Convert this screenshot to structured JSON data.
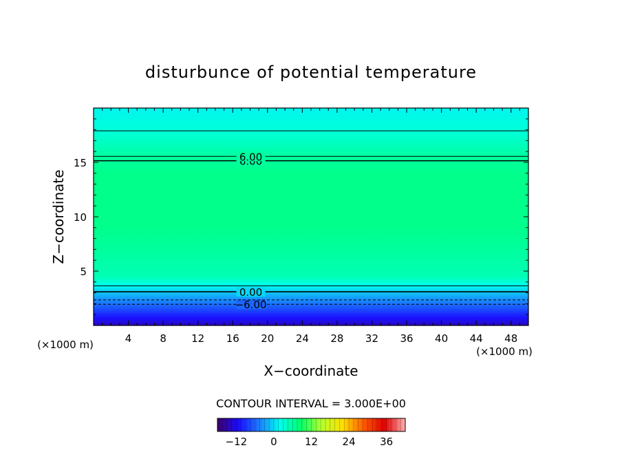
{
  "chart_data": {
    "type": "heatmap",
    "title": "disturbunce of potential temperature",
    "xlabel": "X−coordinate",
    "ylabel": "Z−coordinate",
    "x_unit": "(×1000 m)",
    "y_unit": "(×1000 m)",
    "xlim": [
      0,
      50
    ],
    "ylim": [
      0,
      20
    ],
    "x_ticks": [
      4,
      8,
      12,
      16,
      20,
      24,
      28,
      32,
      36,
      40,
      44,
      48
    ],
    "y_ticks": [
      5,
      10,
      15
    ],
    "grid": false,
    "z_profile": [
      {
        "z": 0.0,
        "value": -14
      },
      {
        "z": 0.7,
        "value": -11
      },
      {
        "z": 1.6,
        "value": -7
      },
      {
        "z": 2.3,
        "value": -4
      },
      {
        "z": 3.0,
        "value": -1
      },
      {
        "z": 3.7,
        "value": 2
      },
      {
        "z": 4.5,
        "value": 5
      },
      {
        "z": 9.0,
        "value": 7
      },
      {
        "z": 14.0,
        "value": 7
      },
      {
        "z": 15.5,
        "value": 6
      },
      {
        "z": 17.0,
        "value": 4
      },
      {
        "z": 18.0,
        "value": 3
      },
      {
        "z": 20.0,
        "value": 1.5
      }
    ],
    "contour_lines": [
      {
        "z": 1.95,
        "value": -6,
        "style": "dashed",
        "label": "−6.00",
        "label_x": 16.5
      },
      {
        "z": 2.35,
        "value": -3,
        "style": "dashed",
        "label": "",
        "label_x": null
      },
      {
        "z": 3.1,
        "value": 0,
        "style": "solid-bold",
        "label": "0.00",
        "label_x": 16.5
      },
      {
        "z": 3.65,
        "value": 3,
        "style": "solid",
        "label": "",
        "label_x": null
      },
      {
        "z": 15.15,
        "value": 6,
        "style": "solid-bold",
        "label": "6.00",
        "label_x": 16.5
      },
      {
        "z": 15.55,
        "value": 6,
        "style": "solid",
        "label": "6.00",
        "label_x": 16.5
      },
      {
        "z": 17.9,
        "value": 3,
        "style": "solid",
        "label": "",
        "label_x": null
      }
    ],
    "contour_interval_text": "CONTOUR INTERVAL = 3.000E+00",
    "colorbar": {
      "min": -18,
      "max": 42,
      "ticks": [
        -12,
        0,
        12,
        24,
        36
      ],
      "tick_labels": [
        "−12",
        "0",
        "12",
        "24",
        "36"
      ],
      "colormap": "rainbow",
      "colors": [
        "#3d0066",
        "#1a0bff",
        "#1c7dff",
        "#00ffee",
        "#00ff6a",
        "#b6ff2a",
        "#ffe000",
        "#ff5a00",
        "#e00000",
        "#ffb0b0"
      ]
    }
  }
}
